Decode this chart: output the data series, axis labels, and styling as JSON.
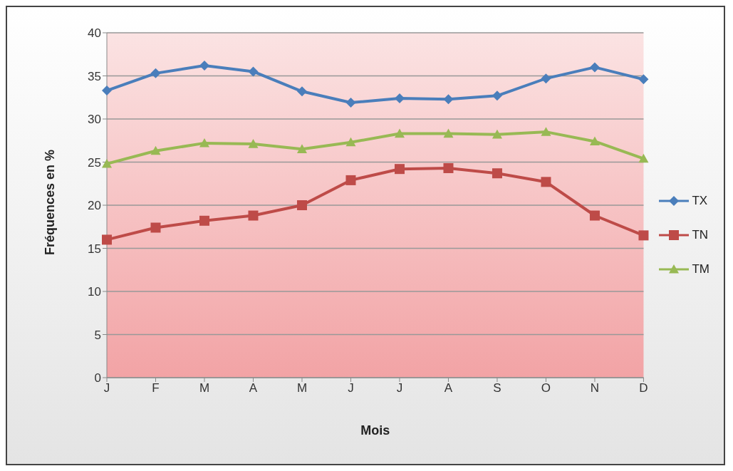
{
  "chart_data": {
    "type": "line",
    "xlabel": "Mois",
    "ylabel": "Fréquences en %",
    "categories": [
      "J",
      "F",
      "M",
      "A",
      "M",
      "J",
      "J",
      "A",
      "S",
      "O",
      "N",
      "D"
    ],
    "series": [
      {
        "name": "TX",
        "color": "#4a7ebb",
        "marker": "diamond",
        "values": [
          33.3,
          35.3,
          36.2,
          35.5,
          33.2,
          31.9,
          32.4,
          32.3,
          32.7,
          34.7,
          36.0,
          34.6
        ]
      },
      {
        "name": "TN",
        "color": "#be4b48",
        "marker": "square",
        "values": [
          16.0,
          17.4,
          18.2,
          18.8,
          20.0,
          22.9,
          24.2,
          24.3,
          23.7,
          22.7,
          18.8,
          16.5
        ]
      },
      {
        "name": "TM",
        "color": "#98b954",
        "marker": "triangle",
        "values": [
          24.8,
          26.3,
          27.2,
          27.1,
          26.5,
          27.3,
          28.3,
          28.3,
          28.2,
          28.5,
          27.4,
          25.4
        ]
      }
    ],
    "ylim": [
      0,
      40
    ],
    "yticks": [
      0,
      5,
      10,
      15,
      20,
      25,
      30,
      35,
      40
    ],
    "grid": "y",
    "legend": "right",
    "line_style": "solid"
  }
}
